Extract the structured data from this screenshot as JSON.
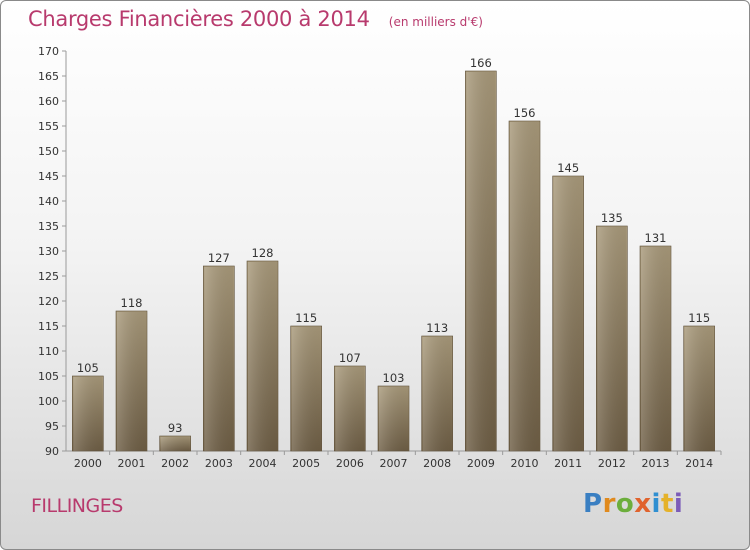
{
  "page": {
    "title": "Charges Financières 2000 à 2014",
    "unit": "(en milliers d'€)",
    "commune": "FILLINGES",
    "brand": {
      "letters": [
        "P",
        "r",
        "o",
        "x",
        "i",
        "t",
        "i"
      ],
      "colors": [
        "#3a7fc2",
        "#e08a1e",
        "#6cae3c",
        "#e0632e",
        "#2f8fd1",
        "#e5b22a",
        "#7c5cb8"
      ]
    }
  },
  "chart_data": {
    "type": "bar",
    "categories": [
      "2000",
      "2001",
      "2002",
      "2003",
      "2004",
      "2005",
      "2006",
      "2007",
      "2008",
      "2009",
      "2010",
      "2011",
      "2012",
      "2013",
      "2014"
    ],
    "values": [
      105,
      118,
      93,
      127,
      128,
      115,
      107,
      103,
      113,
      166,
      156,
      145,
      135,
      131,
      115
    ],
    "ylim": [
      90,
      170
    ],
    "yticks": [
      90,
      95,
      100,
      105,
      110,
      115,
      120,
      125,
      130,
      135,
      140,
      145,
      150,
      155,
      160,
      165,
      170
    ],
    "grid": false,
    "bar_color": "#8d7a5c"
  }
}
